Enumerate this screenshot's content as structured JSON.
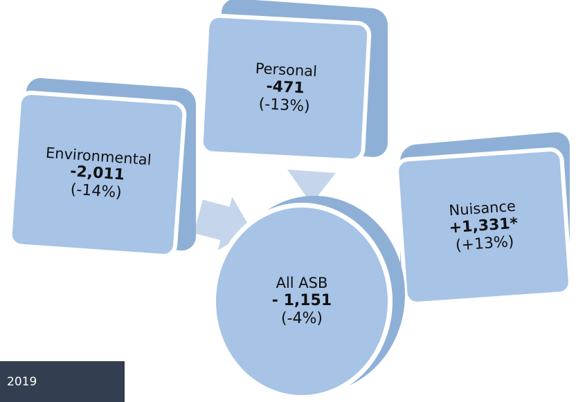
{
  "boxes": {
    "environmental": {
      "label": "Environmental",
      "value": "-2,011",
      "pct": "(-14%)"
    },
    "personal": {
      "label": "Personal",
      "value": "-471",
      "pct": "(-13%)"
    },
    "nuisance": {
      "label": "Nuisance",
      "value": "+1,331*",
      "pct": "(+13%)"
    }
  },
  "center": {
    "label": "All ASB",
    "value": "- 1,151",
    "pct": "(-4%)"
  },
  "footer": {
    "year": "2019"
  },
  "colors": {
    "face": "#a7c3e6",
    "side": "#8fb0d6",
    "arrow": "#c5d6ec",
    "year_bar": "#333f50"
  }
}
